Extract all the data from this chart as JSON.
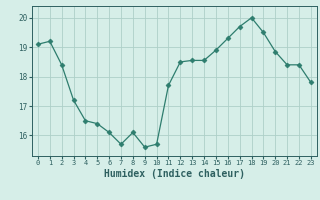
{
  "x": [
    0,
    1,
    2,
    3,
    4,
    5,
    6,
    7,
    8,
    9,
    10,
    11,
    12,
    13,
    14,
    15,
    16,
    17,
    18,
    19,
    20,
    21,
    22,
    23
  ],
  "y": [
    19.1,
    19.2,
    18.4,
    17.2,
    16.5,
    16.4,
    16.1,
    15.7,
    16.1,
    15.6,
    15.7,
    17.7,
    18.5,
    18.55,
    18.55,
    18.9,
    19.3,
    19.7,
    20.0,
    19.5,
    18.85,
    18.4,
    18.4,
    17.8
  ],
  "line_color": "#2e7d6e",
  "marker": "D",
  "marker_size": 2.5,
  "bg_color": "#d6eee8",
  "grid_color": "#aed0c8",
  "tick_color": "#2e6060",
  "xlabel": "Humidex (Indice chaleur)",
  "xlabel_fontsize": 7,
  "yticks": [
    16,
    17,
    18,
    19,
    20
  ],
  "xticks": [
    0,
    1,
    2,
    3,
    4,
    5,
    6,
    7,
    8,
    9,
    10,
    11,
    12,
    13,
    14,
    15,
    16,
    17,
    18,
    19,
    20,
    21,
    22,
    23
  ],
  "ylim": [
    15.3,
    20.4
  ],
  "xlim": [
    -0.5,
    23.5
  ]
}
